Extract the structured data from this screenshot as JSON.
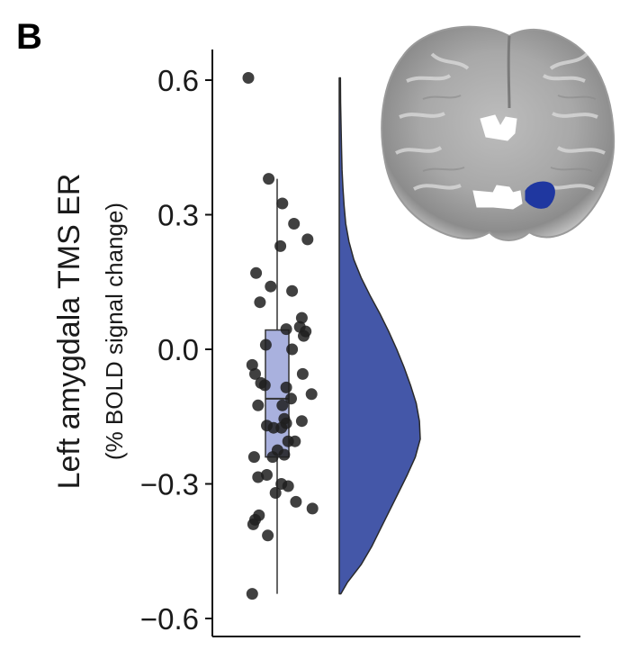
{
  "panel_label": "B",
  "chart_data": {
    "type": "scatter",
    "subtype": "raincloud",
    "title": "",
    "xlabel": "",
    "ylabel": "Left amygdala TMS ER",
    "ylabel_sub": "(% BOLD signal change)",
    "ylim": [
      -0.62,
      0.68
    ],
    "yticks": [
      -0.6,
      -0.3,
      0.0,
      0.3,
      0.6
    ],
    "ytick_labels": [
      "−0.6",
      "−0.3",
      "0.0",
      "0.3",
      "0.6"
    ],
    "grid": false,
    "legend": "none",
    "colors": {
      "points": "#1f1f1f",
      "box_fill": "#a9b1de",
      "box_stroke": "#333333",
      "violin_fill": "#4457a8",
      "violin_stroke": "#2a2a2a",
      "inset_roi_amygdala": "#1f37a0",
      "inset_roi_other": "#ffffff"
    },
    "boxplot": {
      "min": -0.545,
      "q1": -0.24,
      "median": -0.11,
      "q3": 0.043,
      "max": 0.38
    },
    "density": {
      "y": [
        -0.545,
        -0.52,
        -0.48,
        -0.44,
        -0.4,
        -0.36,
        -0.32,
        -0.28,
        -0.24,
        -0.2,
        -0.16,
        -0.12,
        -0.08,
        -0.04,
        0.0,
        0.04,
        0.08,
        0.12,
        0.16,
        0.2,
        0.24,
        0.28,
        0.32,
        0.36,
        0.4,
        0.45,
        0.5,
        0.55,
        0.605
      ],
      "density": [
        0.02,
        0.1,
        0.27,
        0.4,
        0.51,
        0.62,
        0.73,
        0.84,
        0.94,
        1.0,
        0.99,
        0.95,
        0.88,
        0.8,
        0.71,
        0.61,
        0.5,
        0.38,
        0.27,
        0.18,
        0.12,
        0.08,
        0.06,
        0.045,
        0.035,
        0.028,
        0.022,
        0.017,
        0.014
      ]
    },
    "points": [
      {
        "x": 0.37,
        "y": 0.605
      },
      {
        "x": 0.58,
        "y": 0.38
      },
      {
        "x": 0.72,
        "y": 0.325
      },
      {
        "x": 0.84,
        "y": 0.28
      },
      {
        "x": 0.7,
        "y": 0.23
      },
      {
        "x": 0.98,
        "y": 0.245
      },
      {
        "x": 0.45,
        "y": 0.17
      },
      {
        "x": 0.6,
        "y": 0.14
      },
      {
        "x": 0.82,
        "y": 0.13
      },
      {
        "x": 0.49,
        "y": 0.105
      },
      {
        "x": 0.92,
        "y": 0.07
      },
      {
        "x": 0.9,
        "y": 0.05
      },
      {
        "x": 0.76,
        "y": 0.045
      },
      {
        "x": 0.96,
        "y": 0.04
      },
      {
        "x": 0.94,
        "y": 0.03
      },
      {
        "x": 0.82,
        "y": 0.0
      },
      {
        "x": 0.55,
        "y": 0.01
      },
      {
        "x": 0.41,
        "y": -0.035
      },
      {
        "x": 0.44,
        "y": -0.055
      },
      {
        "x": 0.93,
        "y": -0.055
      },
      {
        "x": 0.76,
        "y": -0.085
      },
      {
        "x": 0.5,
        "y": -0.075
      },
      {
        "x": 0.54,
        "y": -0.08
      },
      {
        "x": 0.81,
        "y": -0.11
      },
      {
        "x": 1.02,
        "y": -0.1
      },
      {
        "x": 0.72,
        "y": -0.125
      },
      {
        "x": 0.47,
        "y": -0.125
      },
      {
        "x": 0.74,
        "y": -0.155
      },
      {
        "x": 0.76,
        "y": -0.165
      },
      {
        "x": 0.92,
        "y": -0.16
      },
      {
        "x": 0.71,
        "y": -0.175
      },
      {
        "x": 0.63,
        "y": -0.175
      },
      {
        "x": 0.56,
        "y": -0.17
      },
      {
        "x": 0.85,
        "y": -0.205
      },
      {
        "x": 0.78,
        "y": -0.205
      },
      {
        "x": 0.67,
        "y": -0.225
      },
      {
        "x": 0.62,
        "y": -0.24
      },
      {
        "x": 0.74,
        "y": -0.235
      },
      {
        "x": 0.43,
        "y": -0.24
      },
      {
        "x": 0.56,
        "y": -0.28
      },
      {
        "x": 0.47,
        "y": -0.285
      },
      {
        "x": 0.71,
        "y": -0.3
      },
      {
        "x": 0.78,
        "y": -0.305
      },
      {
        "x": 0.65,
        "y": -0.32
      },
      {
        "x": 0.86,
        "y": -0.34
      },
      {
        "x": 1.03,
        "y": -0.355
      },
      {
        "x": 0.48,
        "y": -0.37
      },
      {
        "x": 0.44,
        "y": -0.38
      },
      {
        "x": 0.42,
        "y": -0.39
      },
      {
        "x": 0.57,
        "y": -0.415
      },
      {
        "x": 0.41,
        "y": -0.545
      }
    ]
  },
  "inset": {
    "description_icon": "brain-coronal-slice-icon",
    "highlight": "left-amygdala-roi"
  }
}
